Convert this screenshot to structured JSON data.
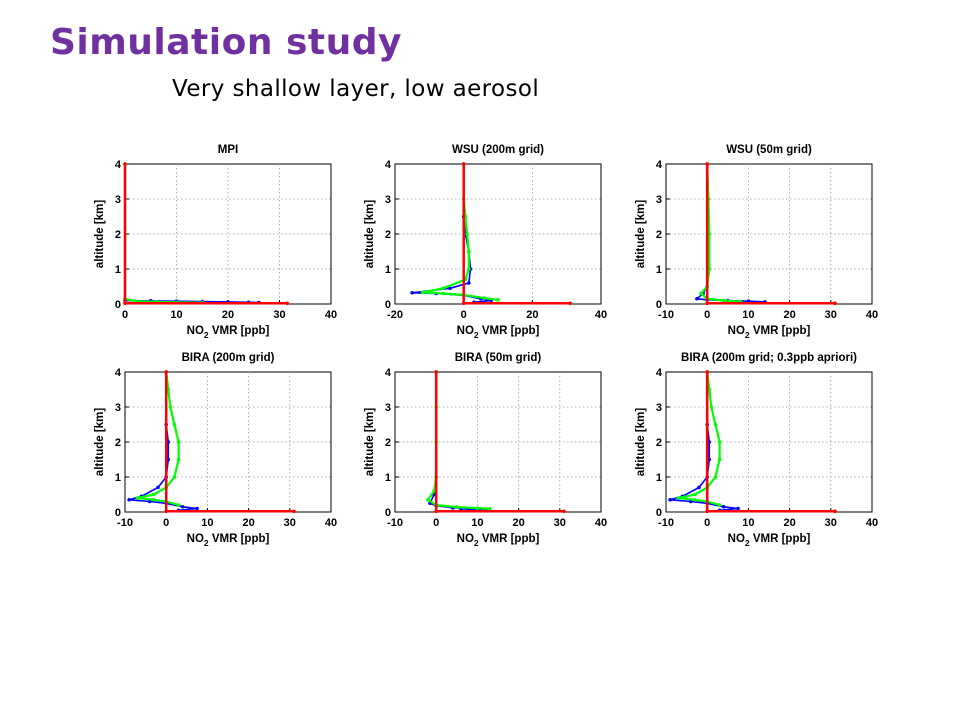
{
  "slide": {
    "title": "Simulation study",
    "subtitle": "Very shallow layer, low aerosol",
    "title_color": "#7030a0"
  },
  "series_colors": [
    "#0000ff",
    "#00ff00",
    "#ff0000"
  ],
  "chart_data": [
    {
      "type": "line",
      "title": "MPI",
      "xlim": [
        0,
        40
      ],
      "xticks": [
        0,
        10,
        20,
        30,
        40
      ],
      "ylim": [
        0,
        4
      ],
      "yticks": [
        0,
        1,
        2,
        3,
        4
      ],
      "xlabel": {
        "pre": "NO",
        "sub": "2",
        "post": " VMR [ppb]"
      },
      "ylabel": "altitude [km]",
      "grid": true,
      "series": [
        {
          "color": "#0000ff",
          "points": [
            [
              0,
              0.1
            ],
            [
              5,
              0.09
            ],
            [
              10,
              0.08
            ],
            [
              15,
              0.07
            ],
            [
              20,
              0.06
            ],
            [
              24,
              0.05
            ],
            [
              26,
              0.04
            ]
          ]
        },
        {
          "color": "#00ff00",
          "points": [
            [
              0,
              4
            ],
            [
              0,
              0.15
            ],
            [
              2,
              0.08
            ],
            [
              6,
              0.06
            ],
            [
              10,
              0.05
            ],
            [
              15,
              0.04
            ]
          ]
        },
        {
          "color": "#ff0000",
          "points": [
            [
              0,
              4
            ],
            [
              0,
              0.02
            ],
            [
              31.5,
              0.02
            ]
          ]
        }
      ]
    },
    {
      "type": "line",
      "title": "WSU (200m grid)",
      "xlim": [
        -20,
        40
      ],
      "xticks": [
        -20,
        0,
        20,
        40
      ],
      "ylim": [
        0,
        4
      ],
      "yticks": [
        0,
        1,
        2,
        3,
        4
      ],
      "xlabel": {
        "pre": "NO",
        "sub": "2",
        "post": " VMR [ppb]"
      },
      "ylabel": "altitude [km]",
      "grid": true,
      "series": [
        {
          "color": "#0000ff",
          "points": [
            [
              0,
              4
            ],
            [
              0,
              2.5
            ],
            [
              0.5,
              2
            ],
            [
              1.5,
              1.5
            ],
            [
              2,
              1.0
            ],
            [
              1.5,
              0.6
            ],
            [
              -4,
              0.45
            ],
            [
              -15,
              0.32
            ],
            [
              -8,
              0.3
            ],
            [
              0,
              0.25
            ],
            [
              5,
              0.15
            ],
            [
              8,
              0.1
            ],
            [
              3,
              0.05
            ]
          ]
        },
        {
          "color": "#00ff00",
          "points": [
            [
              0,
              4
            ],
            [
              0,
              3
            ],
            [
              0.5,
              2.5
            ],
            [
              1,
              2
            ],
            [
              1.5,
              1.5
            ],
            [
              1.5,
              1.0
            ],
            [
              0.5,
              0.7
            ],
            [
              -6,
              0.45
            ],
            [
              -12,
              0.33
            ],
            [
              -6,
              0.3
            ],
            [
              0,
              0.26
            ],
            [
              6,
              0.17
            ],
            [
              10,
              0.12
            ]
          ]
        },
        {
          "color": "#ff0000",
          "points": [
            [
              0,
              4
            ],
            [
              0,
              0.02
            ],
            [
              31,
              0.02
            ]
          ]
        }
      ]
    },
    {
      "type": "line",
      "title": "WSU (50m grid)",
      "xlim": [
        -10,
        40
      ],
      "xticks": [
        -10,
        0,
        10,
        20,
        30,
        40
      ],
      "ylim": [
        0,
        4
      ],
      "yticks": [
        0,
        1,
        2,
        3,
        4
      ],
      "xlabel": {
        "pre": "NO",
        "sub": "2",
        "post": " VMR [ppb]"
      },
      "ylabel": "altitude [km]",
      "grid": true,
      "series": [
        {
          "color": "#0000ff",
          "points": [
            [
              0,
              4
            ],
            [
              0,
              0.5
            ],
            [
              -1,
              0.3
            ],
            [
              -2.5,
              0.15
            ],
            [
              0,
              0.12
            ],
            [
              5,
              0.1
            ],
            [
              10,
              0.08
            ],
            [
              14,
              0.06
            ],
            [
              10,
              0.04
            ]
          ]
        },
        {
          "color": "#00ff00",
          "points": [
            [
              0,
              4
            ],
            [
              0.3,
              3
            ],
            [
              0.5,
              2
            ],
            [
              0.5,
              1
            ],
            [
              0,
              0.5
            ],
            [
              -1.5,
              0.3
            ],
            [
              0,
              0.15
            ],
            [
              4,
              0.1
            ],
            [
              8,
              0.07
            ]
          ]
        },
        {
          "color": "#ff0000",
          "points": [
            [
              0,
              4
            ],
            [
              0,
              0.02
            ],
            [
              31,
              0.02
            ]
          ]
        }
      ]
    },
    {
      "type": "line",
      "title": "BIRA (200m grid)",
      "xlim": [
        -10,
        40
      ],
      "xticks": [
        -10,
        0,
        10,
        20,
        30,
        40
      ],
      "ylim": [
        0,
        4
      ],
      "yticks": [
        0,
        1,
        2,
        3,
        4
      ],
      "xlabel": {
        "pre": "NO",
        "sub": "2",
        "post": " VMR [ppb]"
      },
      "ylabel": "altitude [km]",
      "grid": true,
      "series": [
        {
          "color": "#0000ff",
          "points": [
            [
              0,
              4
            ],
            [
              0,
              2.5
            ],
            [
              0.5,
              2
            ],
            [
              0.5,
              1.5
            ],
            [
              0,
              1
            ],
            [
              -2,
              0.7
            ],
            [
              -6,
              0.45
            ],
            [
              -9,
              0.35
            ],
            [
              -4,
              0.3
            ],
            [
              0,
              0.25
            ],
            [
              4,
              0.15
            ],
            [
              7.5,
              0.1
            ],
            [
              3,
              0.05
            ]
          ]
        },
        {
          "color": "#00ff00",
          "points": [
            [
              0,
              4
            ],
            [
              0.5,
              3.5
            ],
            [
              1,
              3
            ],
            [
              2,
              2.5
            ],
            [
              3,
              2
            ],
            [
              3,
              1.5
            ],
            [
              2,
              1.0
            ],
            [
              0,
              0.7
            ],
            [
              -3,
              0.5
            ],
            [
              -7,
              0.4
            ],
            [
              -3,
              0.35
            ],
            [
              0,
              0.3
            ],
            [
              3,
              0.2
            ]
          ]
        },
        {
          "color": "#ff0000",
          "points": [
            [
              0,
              4
            ],
            [
              0,
              0.02
            ],
            [
              31,
              0.02
            ]
          ]
        }
      ]
    },
    {
      "type": "line",
      "title": "BIRA (50m grid)",
      "xlim": [
        -10,
        40
      ],
      "xticks": [
        -10,
        0,
        10,
        20,
        30,
        40
      ],
      "ylim": [
        0,
        4
      ],
      "yticks": [
        0,
        1,
        2,
        3,
        4
      ],
      "xlabel": {
        "pre": "NO",
        "sub": "2",
        "post": " VMR [ppb]"
      },
      "ylabel": "altitude [km]",
      "grid": true,
      "series": [
        {
          "color": "#0000ff",
          "points": [
            [
              0,
              4
            ],
            [
              0,
              1
            ],
            [
              -0.5,
              0.5
            ],
            [
              -1.5,
              0.25
            ],
            [
              0,
              0.18
            ],
            [
              4,
              0.12
            ],
            [
              8,
              0.1
            ],
            [
              12,
              0.08
            ],
            [
              6,
              0.05
            ]
          ]
        },
        {
          "color": "#00ff00",
          "points": [
            [
              0,
              4
            ],
            [
              0,
              3
            ],
            [
              0,
              2
            ],
            [
              0,
              1
            ],
            [
              -0.5,
              0.6
            ],
            [
              -2,
              0.35
            ],
            [
              0,
              0.2
            ],
            [
              5,
              0.14
            ],
            [
              10,
              0.11
            ],
            [
              13,
              0.09
            ]
          ]
        },
        {
          "color": "#ff0000",
          "points": [
            [
              0,
              4
            ],
            [
              0,
              0.02
            ],
            [
              31,
              0.02
            ]
          ]
        }
      ]
    },
    {
      "type": "line",
      "title": "BIRA (200m grid; 0.3ppb apriori)",
      "xlim": [
        -10,
        40
      ],
      "xticks": [
        -10,
        0,
        10,
        20,
        30,
        40
      ],
      "ylim": [
        0,
        4
      ],
      "yticks": [
        0,
        1,
        2,
        3,
        4
      ],
      "xlabel": {
        "pre": "NO",
        "sub": "2",
        "post": " VMR [ppb]"
      },
      "ylabel": "altitude [km]",
      "grid": true,
      "series": [
        {
          "color": "#0000ff",
          "points": [
            [
              0,
              4
            ],
            [
              0,
              2.5
            ],
            [
              0.5,
              2
            ],
            [
              0.5,
              1.5
            ],
            [
              0,
              1
            ],
            [
              -2,
              0.7
            ],
            [
              -6,
              0.45
            ],
            [
              -9,
              0.35
            ],
            [
              -4,
              0.3
            ],
            [
              0,
              0.25
            ],
            [
              4,
              0.15
            ],
            [
              7.5,
              0.1
            ],
            [
              3,
              0.05
            ]
          ]
        },
        {
          "color": "#00ff00",
          "points": [
            [
              0,
              4
            ],
            [
              0.5,
              3.5
            ],
            [
              1,
              3
            ],
            [
              2,
              2.5
            ],
            [
              3,
              2
            ],
            [
              3,
              1.5
            ],
            [
              2,
              1.0
            ],
            [
              0,
              0.7
            ],
            [
              -3,
              0.5
            ],
            [
              -7,
              0.4
            ],
            [
              -3,
              0.35
            ],
            [
              0,
              0.3
            ],
            [
              3,
              0.2
            ]
          ]
        },
        {
          "color": "#ff0000",
          "points": [
            [
              0,
              4
            ],
            [
              0,
              0.02
            ],
            [
              31,
              0.02
            ]
          ]
        }
      ]
    }
  ]
}
